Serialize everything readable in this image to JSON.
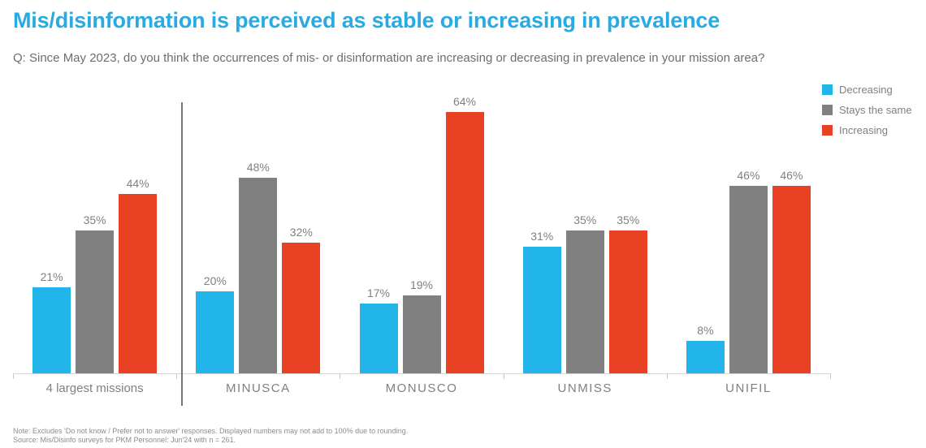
{
  "header": {
    "title": "Mis/disinformation is perceived as stable or increasing in prevalence",
    "question": "Q: Since May 2023, do you think the occurrences of mis- or disinformation are increasing or decreasing in prevalence in your mission area?"
  },
  "legend": [
    {
      "label": "Decreasing",
      "color": "#22B5EA"
    },
    {
      "label": "Stays the same",
      "color": "#808080"
    },
    {
      "label": "Increasing",
      "color": "#E84123"
    }
  ],
  "chart_data": {
    "type": "bar",
    "title": "Mis/disinformation is perceived as stable or increasing in prevalence",
    "categories": [
      "4 largest missions",
      "MINUSCA",
      "MONUSCO",
      "UNMISS",
      "UNIFIL"
    ],
    "series": [
      {
        "name": "Decreasing",
        "color": "#22B5EA",
        "values": [
          21,
          20,
          17,
          31,
          8
        ]
      },
      {
        "name": "Stays the same",
        "color": "#808080",
        "values": [
          35,
          48,
          19,
          35,
          46
        ]
      },
      {
        "name": "Increasing",
        "color": "#E84123",
        "values": [
          44,
          32,
          64,
          35,
          46
        ]
      }
    ],
    "value_suffix": "%",
    "xlabel": "",
    "ylabel": "",
    "ylim": [
      0,
      70
    ],
    "grid": false,
    "legend_position": "top-right",
    "separator_after_category": "4 largest missions",
    "data_labels": true
  },
  "footer": {
    "note": "Note: Excludes 'Do not know / Prefer not to answer' responses. Displayed numbers may not add to 100% due to rounding.",
    "source": "Source: Mis/Disinfo surveys for PKM Personnel: Jun'24 with n = 261."
  },
  "colors": {
    "title": "#29ABE2",
    "subtitle": "#6E6E6E",
    "labels": "#808080",
    "axis": "#D5D5D5",
    "divider": "#757575"
  }
}
